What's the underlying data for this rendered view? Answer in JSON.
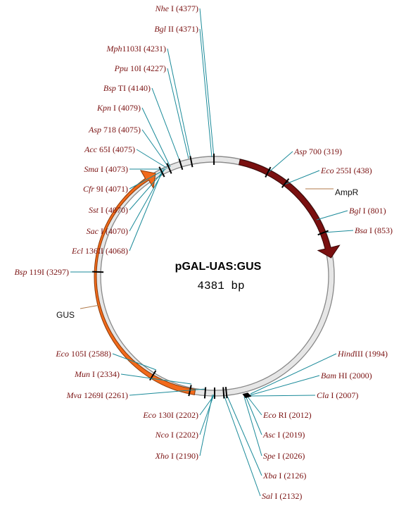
{
  "plasmid": {
    "name": "pGAL-UAS:GUS",
    "size": "4381 bp"
  },
  "features": [
    {
      "name": "AmpR",
      "color": "#7a1010"
    },
    {
      "name": "GUS",
      "color": "#f26a1b"
    }
  ],
  "sites": [
    {
      "enzyme": "Nhe",
      "rest": " I (4377)"
    },
    {
      "enzyme": "Bgl",
      "rest": " II (4371)"
    },
    {
      "enzyme": "Mph",
      "rest": "1103I (4231)"
    },
    {
      "enzyme": "Ppu",
      "rest": " 10I (4227)"
    },
    {
      "enzyme": "Bsp",
      "rest": " TI (4140)"
    },
    {
      "enzyme": "Kpn",
      "rest": " I (4079)"
    },
    {
      "enzyme": "Asp",
      "rest": " 718 (4075)"
    },
    {
      "enzyme": "Acc",
      "rest": " 65I (4075)"
    },
    {
      "enzyme": "Sma",
      "rest": " I (4073)"
    },
    {
      "enzyme": "Cfr",
      "rest": " 9I (4071)"
    },
    {
      "enzyme": "Sst",
      "rest": " I (4070)"
    },
    {
      "enzyme": "Sac",
      "rest": " I (4070)"
    },
    {
      "enzyme": "Ecl",
      "rest": " 136II (4068)"
    },
    {
      "enzyme": "Bsp",
      "rest": " 119I (3297)"
    },
    {
      "enzyme": "Asp",
      "rest": " 700 (319)"
    },
    {
      "enzyme": "Eco",
      "rest": " 255I (438)"
    },
    {
      "enzyme": "Bgl",
      "rest": " I (801)"
    },
    {
      "enzyme": "Bsa",
      "rest": " I (853)"
    },
    {
      "enzyme": "Hind",
      "rest": "III (1994)"
    },
    {
      "enzyme": "Bam",
      "rest": " HI (2000)"
    },
    {
      "enzyme": "Cla",
      "rest": " I (2007)"
    },
    {
      "enzyme": "Eco",
      "rest": " RI (2012)"
    },
    {
      "enzyme": "Asc",
      "rest": " I (2019)"
    },
    {
      "enzyme": "Spe",
      "rest": " I (2026)"
    },
    {
      "enzyme": "Xba",
      "rest": " I (2126)"
    },
    {
      "enzyme": "Sal",
      "rest": " I (2132)"
    },
    {
      "enzyme": "Eco",
      "rest": " 105I (2588)"
    },
    {
      "enzyme": "Mun",
      "rest": " I (2334)"
    },
    {
      "enzyme": "Mva",
      "rest": " 1269I (2261)"
    },
    {
      "enzyme": "Eco",
      "rest": " 130I (2202)"
    },
    {
      "enzyme": "Nco",
      "rest": " I (2202)"
    },
    {
      "enzyme": "Xho",
      "rest": " I (2190)"
    }
  ]
}
